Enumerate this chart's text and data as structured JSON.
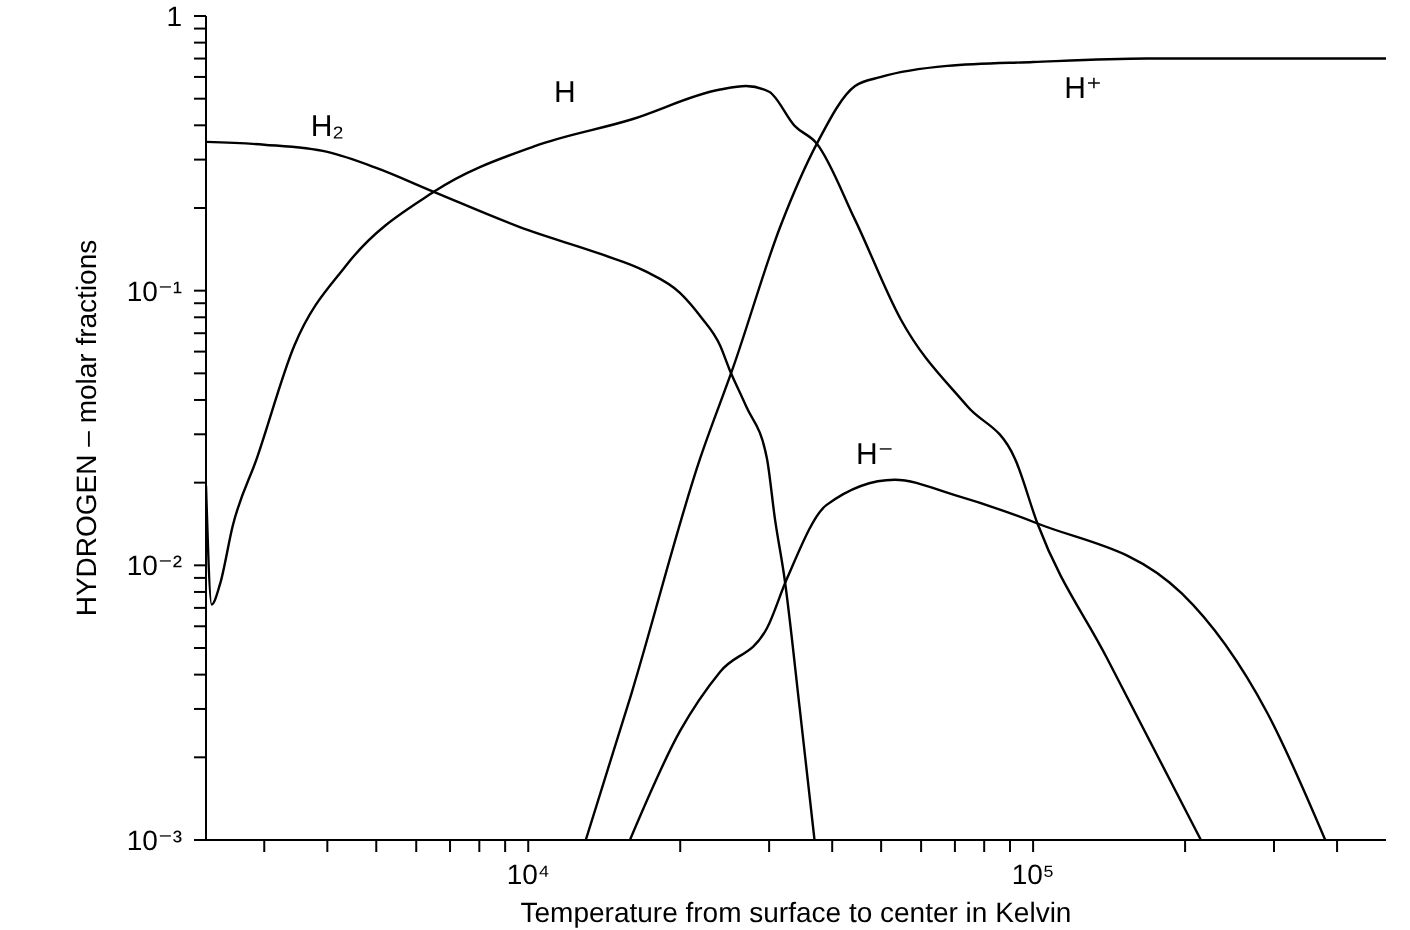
{
  "chart_data": {
    "type": "line",
    "xlabel": "Temperature from surface to center in Kelvin",
    "ylabel": "HYDROGEN – molar fractions",
    "log": "xy",
    "marker": "none",
    "line_style": "solid",
    "xlim": [
      2300,
      500000
    ],
    "ylim": [
      0.001,
      1
    ],
    "xticks": [
      {
        "value": 3000,
        "label": null
      },
      {
        "value": 4000,
        "label": null
      },
      {
        "value": 5000,
        "label": null
      },
      {
        "value": 6000,
        "label": null
      },
      {
        "value": 7000,
        "label": null
      },
      {
        "value": 8000,
        "label": null
      },
      {
        "value": 9000,
        "label": null
      },
      {
        "value": 10000,
        "label": "10⁴"
      },
      {
        "value": 20000,
        "label": null
      },
      {
        "value": 30000,
        "label": null
      },
      {
        "value": 40000,
        "label": null
      },
      {
        "value": 50000,
        "label": null
      },
      {
        "value": 60000,
        "label": null
      },
      {
        "value": 70000,
        "label": null
      },
      {
        "value": 80000,
        "label": null
      },
      {
        "value": 90000,
        "label": null
      },
      {
        "value": 100000,
        "label": "10⁵"
      },
      {
        "value": 200000,
        "label": null
      },
      {
        "value": 300000,
        "label": null
      },
      {
        "value": 400000,
        "label": null
      }
    ],
    "yticks": [
      {
        "value": 0.001,
        "label": "10⁻³"
      },
      {
        "value": 0.002,
        "label": null
      },
      {
        "value": 0.003,
        "label": null
      },
      {
        "value": 0.004,
        "label": null
      },
      {
        "value": 0.005,
        "label": null
      },
      {
        "value": 0.006,
        "label": null
      },
      {
        "value": 0.007,
        "label": null
      },
      {
        "value": 0.008,
        "label": null
      },
      {
        "value": 0.009,
        "label": null
      },
      {
        "value": 0.01,
        "label": "10⁻²"
      },
      {
        "value": 0.02,
        "label": null
      },
      {
        "value": 0.03,
        "label": null
      },
      {
        "value": 0.04,
        "label": null
      },
      {
        "value": 0.05,
        "label": null
      },
      {
        "value": 0.06,
        "label": null
      },
      {
        "value": 0.07,
        "label": null
      },
      {
        "value": 0.08,
        "label": null
      },
      {
        "value": 0.09,
        "label": null
      },
      {
        "value": 0.1,
        "label": "10⁻¹"
      },
      {
        "value": 0.2,
        "label": null
      },
      {
        "value": 0.3,
        "label": null
      },
      {
        "value": 0.4,
        "label": null
      },
      {
        "value": 0.5,
        "label": null
      },
      {
        "value": 0.6,
        "label": null
      },
      {
        "value": 0.7,
        "label": null
      },
      {
        "value": 0.8,
        "label": null
      },
      {
        "value": 0.9,
        "label": null
      },
      {
        "value": 1,
        "label": "1"
      }
    ],
    "series": [
      {
        "name": "H₂",
        "color": "#000000",
        "x": [
          2300,
          3000,
          4000,
          5000,
          6500,
          10000,
          13900,
          17000,
          20000,
          22000,
          24000,
          25000,
          27000,
          29700,
          30800,
          32200,
          34500,
          36900
        ],
        "values": [
          0.348,
          0.34,
          0.32,
          0.28,
          0.229,
          0.166,
          0.136,
          0.118,
          0.098,
          0.08,
          0.063,
          0.052,
          0.038,
          0.0245,
          0.0148,
          0.0089,
          0.003,
          0.001
        ]
      },
      {
        "name": "H",
        "color": "#000000",
        "x": [
          2300,
          2360,
          2450,
          2600,
          2900,
          3440,
          4350,
          6500,
          10300,
          16000,
          24000,
          27000,
          30000,
          33700,
          37300,
          44400,
          54700,
          74000,
          92000,
          102000,
          140000,
          215000
        ],
        "values": [
          0.0195,
          0.0072,
          0.0085,
          0.014,
          0.0245,
          0.063,
          0.123,
          0.229,
          0.336,
          0.42,
          0.54,
          0.556,
          0.53,
          0.398,
          0.343,
          0.181,
          0.0785,
          0.038,
          0.0245,
          0.0142,
          0.0046,
          0.001
        ]
      },
      {
        "name": "H⁺",
        "color": "#000000",
        "x": [
          13000,
          16000,
          21900,
          25500,
          31600,
          37300,
          44400,
          50000,
          67600,
          100000,
          168000,
          500000
        ],
        "values": [
          0.001,
          0.0034,
          0.0245,
          0.053,
          0.172,
          0.343,
          0.556,
          0.6,
          0.658,
          0.68,
          0.7,
          0.7
        ]
      },
      {
        "name": "H⁻",
        "color": "#000000",
        "x": [
          15900,
          20000,
          24000,
          29700,
          32500,
          39000,
          53200,
          70000,
          102000,
          197000,
          291000,
          379000
        ],
        "values": [
          0.001,
          0.0025,
          0.0041,
          0.0059,
          0.0089,
          0.0166,
          0.0205,
          0.018,
          0.0142,
          0.0079,
          0.0029,
          0.001
        ]
      }
    ]
  }
}
